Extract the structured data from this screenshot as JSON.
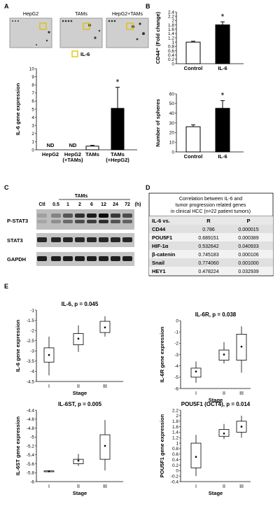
{
  "panels": {
    "A": "A",
    "B": "B",
    "C": "C",
    "D": "D",
    "E": "E"
  },
  "panel_a": {
    "array_labels": [
      "HepG2",
      "TAMs",
      "HepG2+TAMs"
    ],
    "legend_label": "IL-6"
  },
  "panel_c": {
    "group_label": "TAMs",
    "lane_labels": [
      "Ctl",
      "0.5",
      "1",
      "2",
      "6",
      "12",
      "24",
      "72",
      "(h)"
    ],
    "rows": [
      "P-STAT3",
      "STAT3",
      "GAPDH"
    ]
  },
  "panel_d": {
    "title_lines": [
      "Correlation between IL-6 and",
      "tumor progression related genes",
      "in clinical HCC (n=22 patient tumors)"
    ],
    "headers": [
      "IL-6 vs.",
      "R",
      "P"
    ],
    "rows": [
      [
        "CD44",
        "0.786",
        "0.000015"
      ],
      [
        "POU5F1",
        "0.689151",
        "0.000389"
      ],
      [
        "HIF-1α",
        "0.532642",
        "0.040933"
      ],
      [
        "β-catenin",
        "0.745183",
        "0.000106"
      ],
      [
        "Snail",
        "0.774060",
        "0.001000"
      ],
      [
        "HEY1",
        "0.478224",
        "0.032939"
      ]
    ]
  },
  "chart_data": [
    {
      "id": "A",
      "type": "bar",
      "categories": [
        "HepG2",
        "HepG2\n(+TAMs)",
        "TAMs",
        "TAMs\n(+HepG2)"
      ],
      "values": [
        0,
        0,
        0.45,
        5.1
      ],
      "errors": [
        0,
        0,
        0.1,
        2.6
      ],
      "fills": [
        "#ffffff",
        "#ffffff",
        "#ffffff",
        "#000000"
      ],
      "bar_labels": [
        "ND",
        "ND",
        "",
        ""
      ],
      "significance": [
        "",
        "",
        "",
        "*"
      ],
      "ylabel": "IL-6 gene expression",
      "ylim": [
        0,
        10
      ],
      "yticks": [
        0,
        1,
        2,
        3,
        4,
        5,
        6,
        7,
        8,
        9,
        10
      ]
    },
    {
      "id": "B1",
      "type": "bar",
      "categories": [
        "Control",
        "IL-6"
      ],
      "values": [
        1.0,
        1.8
      ],
      "errors": [
        0.04,
        0.14
      ],
      "fills": [
        "#ffffff",
        "#000000"
      ],
      "significance": [
        "",
        "*"
      ],
      "ylabel": "CD44⁺ (Fold change)",
      "ylim": [
        0,
        2.4
      ],
      "yticks": [
        0,
        0.2,
        0.4,
        0.6,
        0.8,
        1,
        1.2,
        1.4,
        1.6,
        1.8,
        2,
        2.2,
        2.4
      ]
    },
    {
      "id": "B2",
      "type": "bar",
      "categories": [
        "Control",
        "IL-6"
      ],
      "values": [
        26,
        45
      ],
      "errors": [
        2,
        8
      ],
      "fills": [
        "#ffffff",
        "#000000"
      ],
      "significance": [
        "",
        "*"
      ],
      "ylabel": "Number of spheres",
      "ylim": [
        0,
        60
      ],
      "yticks": [
        0,
        10,
        20,
        30,
        40,
        50,
        60
      ]
    },
    {
      "id": "E1",
      "type": "box",
      "title": "IL-6, p = 0.045",
      "categories": [
        "I",
        "II",
        "III"
      ],
      "boxes": [
        {
          "min": -4.2,
          "q1": -3.55,
          "median": -3.2,
          "q3": -2.85,
          "max": -2.3,
          "mean": -3.2
        },
        {
          "min": -3.05,
          "q1": -2.7,
          "median": -2.4,
          "q3": -2.15,
          "max": -1.75,
          "mean": -2.4
        },
        {
          "min": -2.3,
          "q1": -2.1,
          "median": -1.85,
          "q3": -1.55,
          "max": -1.3,
          "mean": -1.85
        }
      ],
      "xlabel": "Stage",
      "ylabel": "IL-6 gene expression",
      "ylim": [
        -4.5,
        -1.0
      ],
      "yticks": [
        -4.5,
        -4.0,
        -3.5,
        -3.0,
        -2.5,
        -2.0,
        -1.5,
        -1.0
      ]
    },
    {
      "id": "E2",
      "type": "box",
      "title": "IL-6R, p = 0.038",
      "categories": [
        "I",
        "II",
        "III"
      ],
      "boxes": [
        {
          "min": -5.5,
          "q1": -5.0,
          "median": -4.5,
          "q3": -4.2,
          "max": -3.6,
          "mean": -4.5
        },
        {
          "min": -3.8,
          "q1": -3.5,
          "median": -3.0,
          "q3": -2.6,
          "max": -1.9,
          "mean": -3.0
        },
        {
          "min": -4.6,
          "q1": -3.5,
          "median": -2.3,
          "q3": -1.2,
          "max": -0.5,
          "mean": -2.3
        }
      ],
      "xlabel": "Stage",
      "ylabel": "IL-6R gene expression",
      "ylim": [
        -6,
        0
      ],
      "yticks": [
        -6,
        -5,
        -4,
        -3,
        -2,
        -1,
        0
      ]
    },
    {
      "id": "E3",
      "type": "box",
      "title": "IL-6ST, p = 0.005",
      "categories": [
        "I",
        "II",
        "III"
      ],
      "boxes": [
        {
          "min": -5.79,
          "q1": -5.78,
          "median": -5.77,
          "q3": -5.76,
          "max": -5.75,
          "mean": -5.77
        },
        {
          "min": -5.65,
          "q1": -5.6,
          "median": -5.55,
          "q3": -5.5,
          "max": -5.38,
          "mean": -5.53
        },
        {
          "min": -5.75,
          "q1": -5.5,
          "median": -5.2,
          "q3": -4.95,
          "max": -4.62,
          "mean": -5.2
        }
      ],
      "xlabel": "Stage",
      "ylabel": "IL-6ST gene expression",
      "ylim": [
        -6.0,
        -4.4
      ],
      "yticks": [
        -6.0,
        -5.8,
        -5.6,
        -5.4,
        -5.2,
        -5.0,
        -4.8,
        -4.6,
        -4.4
      ]
    },
    {
      "id": "E4",
      "type": "box",
      "title": "POU5F1 (OCT4), p = 0.014",
      "categories": [
        "I",
        "II",
        "III"
      ],
      "boxes": [
        {
          "min": -0.2,
          "q1": 0.1,
          "median": 0.5,
          "q3": 1.0,
          "max": 1.3,
          "mean": 0.5
        },
        {
          "min": 1.15,
          "q1": 1.25,
          "median": 1.35,
          "q3": 1.5,
          "max": 1.7,
          "mean": 1.35
        },
        {
          "min": 1.2,
          "q1": 1.4,
          "median": 1.55,
          "q3": 1.8,
          "max": 2.0,
          "mean": 1.6
        }
      ],
      "xlabel": "Stage",
      "ylabel": "POU5F1 gene expression",
      "ylim": [
        -0.4,
        2.2
      ],
      "yticks": [
        -0.4,
        -0.2,
        0,
        0.2,
        0.4,
        0.6,
        0.8,
        1,
        1.2,
        1.4,
        1.6,
        1.8,
        2,
        2.2
      ]
    }
  ]
}
